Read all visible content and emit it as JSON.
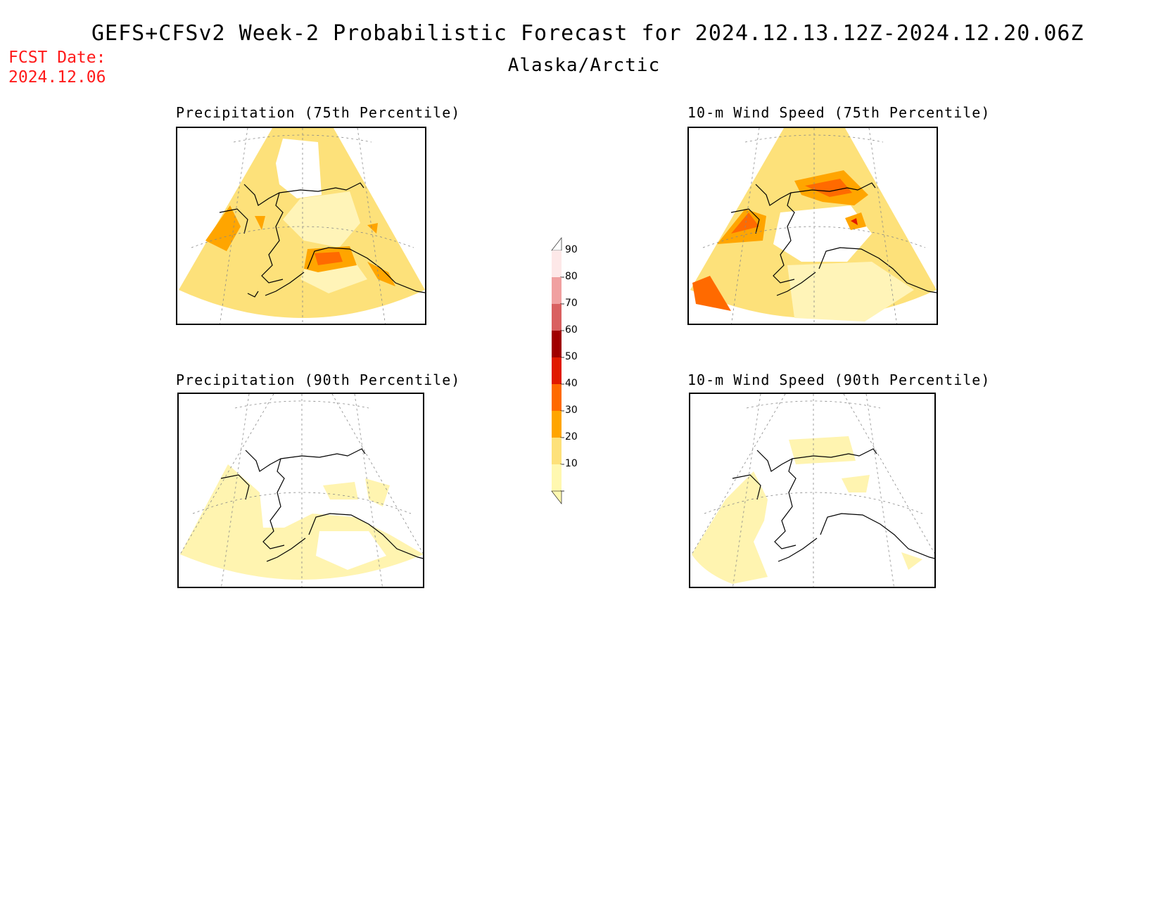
{
  "header": {
    "title": "GEFS+CFSv2 Week-2 Probabilistic Forecast for 2024.12.13.12Z-2024.12.20.06Z",
    "subtitle": "Alaska/Arctic",
    "fcst_label": "FCST Date:",
    "fcst_date": "2024.12.06"
  },
  "panels": [
    {
      "title": "Precipitation (75th Percentile)"
    },
    {
      "title": "10-m Wind Speed (75th Percentile)"
    },
    {
      "title": "Precipitation (90th Percentile)"
    },
    {
      "title": "10-m Wind Speed (90th Percentile)"
    }
  ],
  "colorbar": {
    "labels": [
      "90",
      "80",
      "70",
      "60",
      "50",
      "40",
      "30",
      "20",
      "10"
    ],
    "colors": [
      "#fde8e8",
      "#f0a0a0",
      "#d96060",
      "#a00000",
      "#e01a00",
      "#ff6a00",
      "#ffa500",
      "#fde17a",
      "#fff8b0"
    ]
  }
}
